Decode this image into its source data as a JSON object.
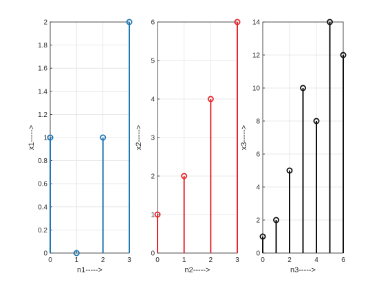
{
  "chart_data": [
    {
      "type": "stem",
      "color": "#1f77b4",
      "x": [
        0,
        1,
        2,
        3
      ],
      "y": [
        1,
        0,
        1,
        2
      ],
      "xlabel": "n1----->",
      "ylabel": "x1----->",
      "xlim": [
        0,
        3
      ],
      "ylim": [
        0,
        2
      ],
      "xticks": [
        0,
        1,
        2,
        3
      ],
      "yticks": [
        0,
        0.2,
        0.4,
        0.6,
        0.8,
        1,
        1.2,
        1.4,
        1.6,
        1.8,
        2
      ],
      "grid": true
    },
    {
      "type": "stem",
      "color": "#e8262b",
      "x": [
        0,
        1,
        2,
        3
      ],
      "y": [
        1,
        2,
        4,
        6
      ],
      "xlabel": "n2----->",
      "ylabel": "x2----->",
      "xlim": [
        0,
        3
      ],
      "ylim": [
        0,
        6
      ],
      "xticks": [
        0,
        1,
        2,
        3
      ],
      "yticks": [
        0,
        1,
        2,
        3,
        4,
        5,
        6
      ],
      "grid": true
    },
    {
      "type": "stem",
      "color": "#111111",
      "x": [
        0,
        1,
        2,
        3,
        4,
        5,
        6
      ],
      "y": [
        1,
        2,
        5,
        10,
        8,
        14,
        12
      ],
      "xlabel": "n3----->",
      "ylabel": "x3----->",
      "xlim": [
        0,
        6
      ],
      "ylim": [
        0,
        14
      ],
      "xticks": [
        0,
        2,
        4,
        6
      ],
      "yticks": [
        0,
        2,
        4,
        6,
        8,
        10,
        12,
        14
      ],
      "grid": true
    }
  ]
}
